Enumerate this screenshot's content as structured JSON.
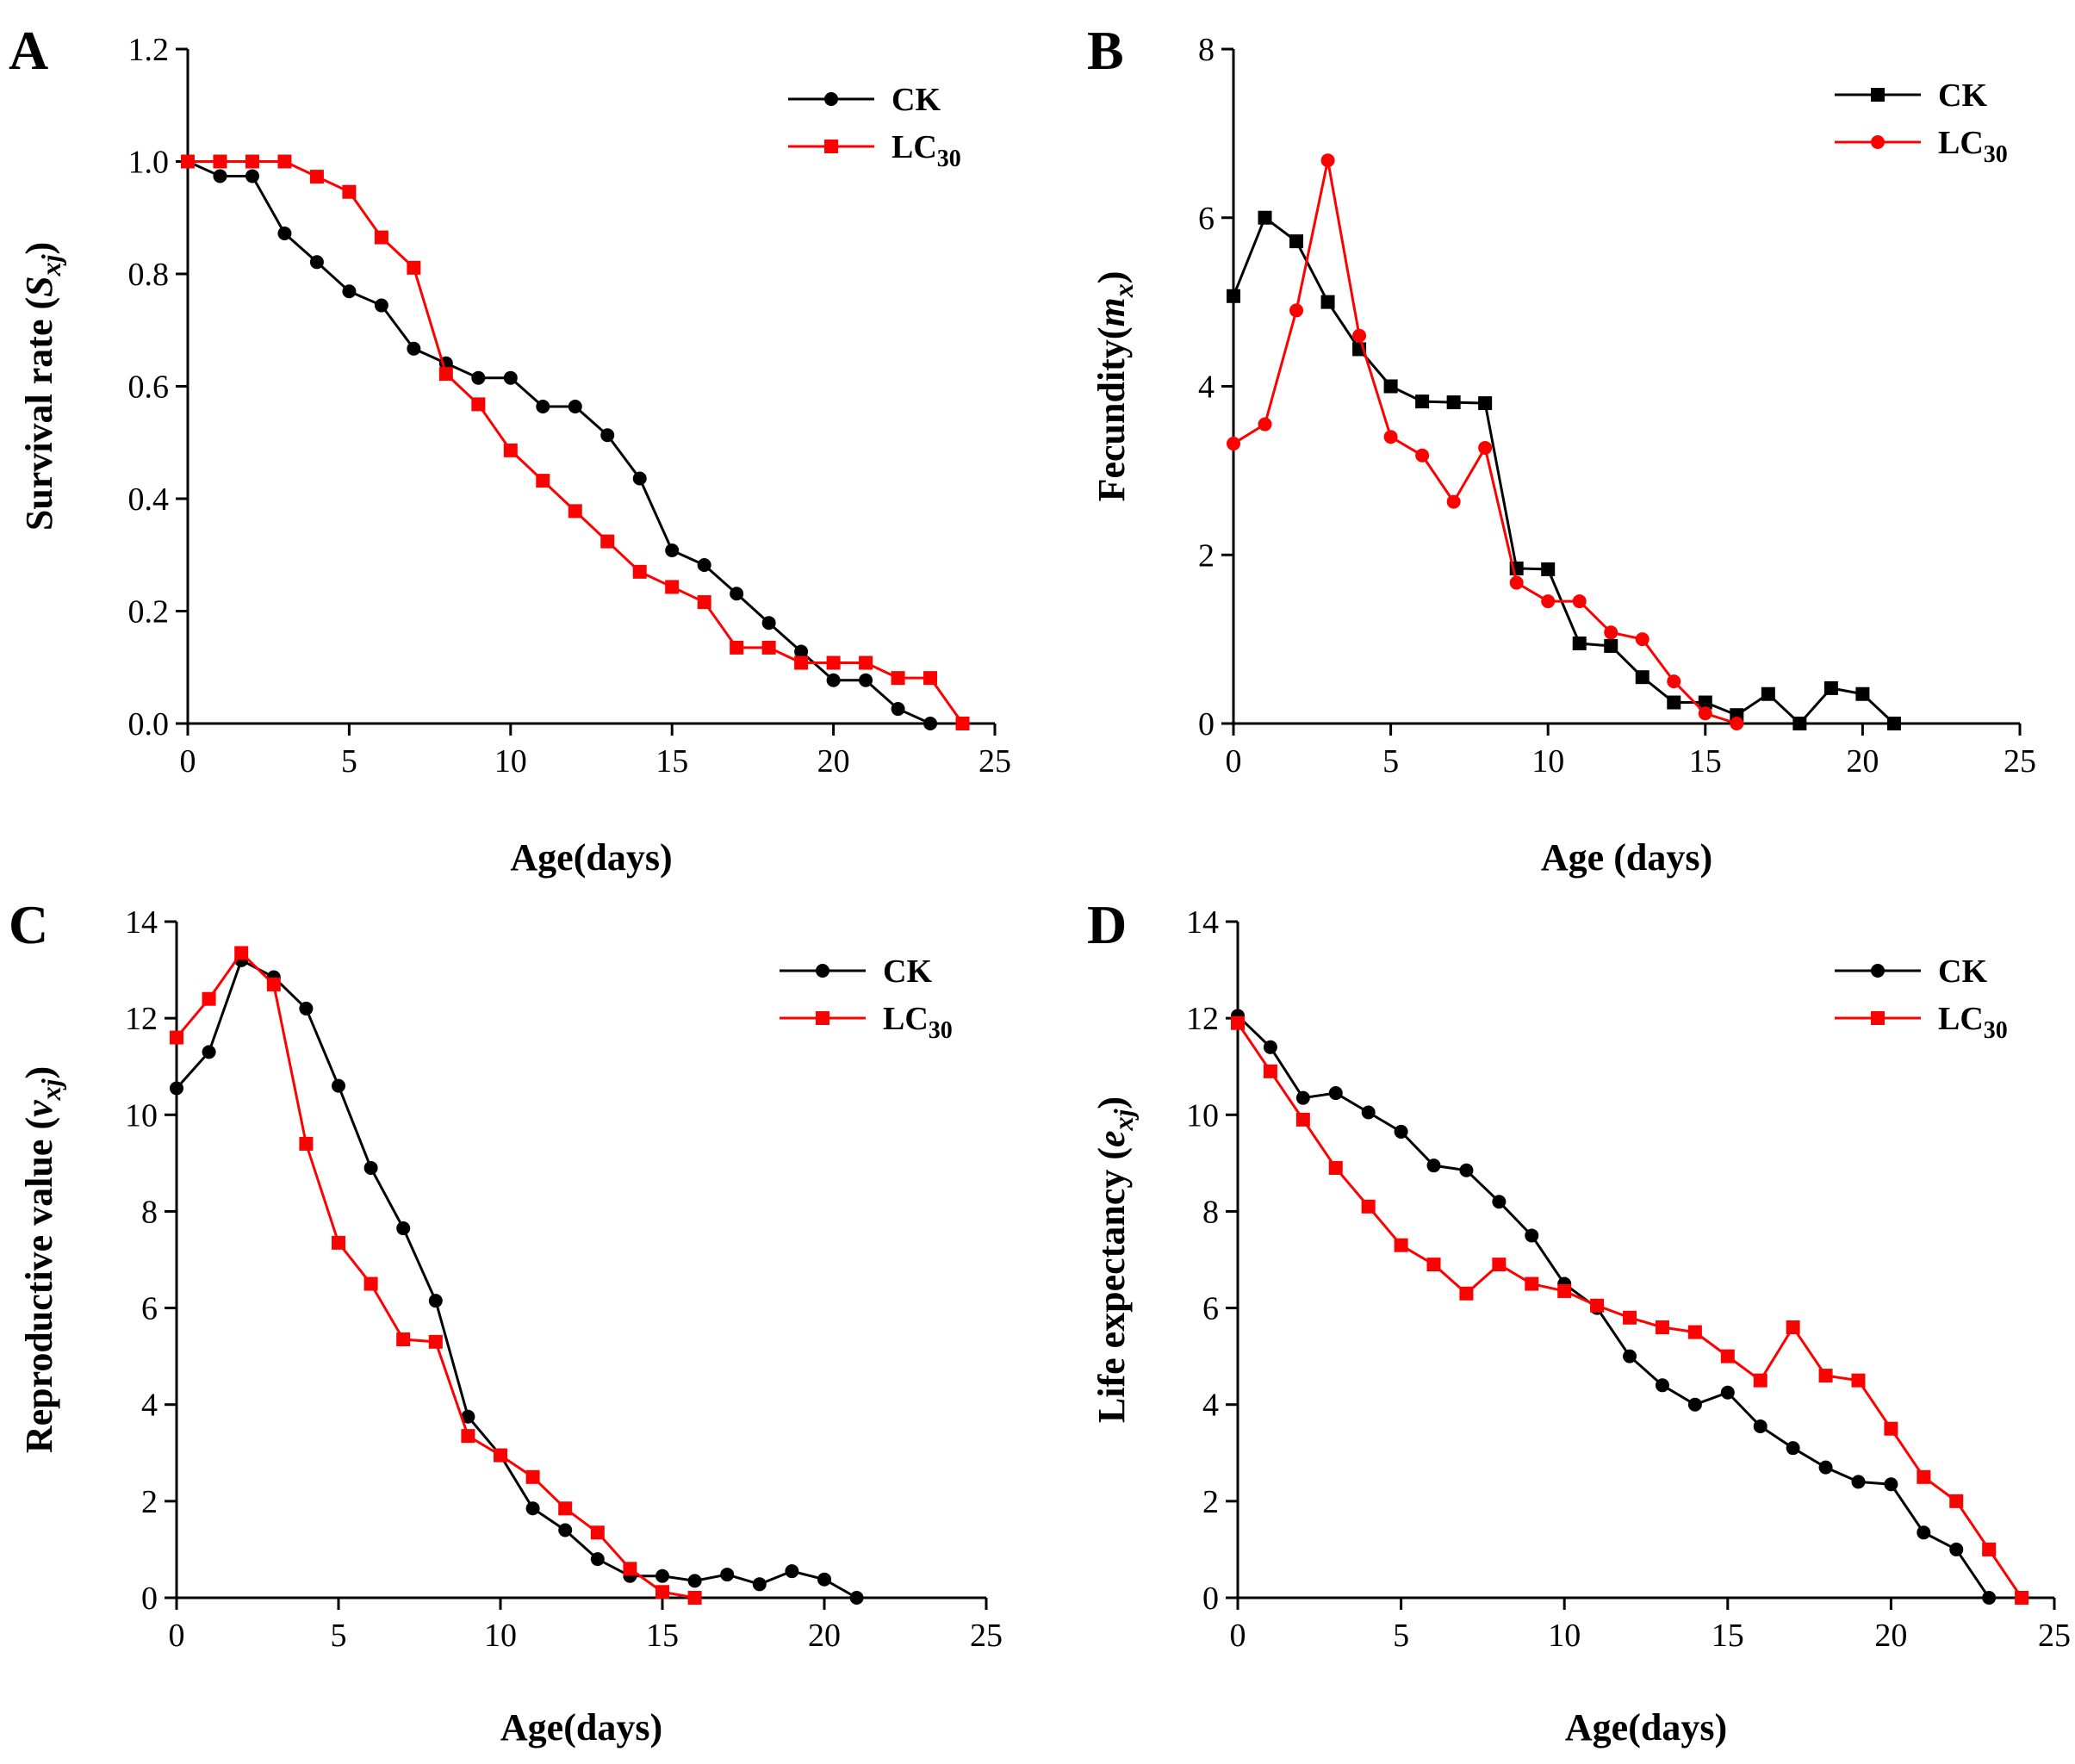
{
  "chart_data": [
    {
      "panel": "A",
      "type": "line",
      "xlabel": "Age(days)",
      "ylabel": {
        "prefix": "Survival rate (",
        "var": "S",
        "sub": "xj",
        "suffix": ")"
      },
      "xlim": [
        0,
        25
      ],
      "ylim": [
        0,
        1.2
      ],
      "xticks": [
        "0",
        "5",
        "10",
        "15",
        "20",
        "25"
      ],
      "yticks": [
        "0.0",
        "0.2",
        "0.4",
        "0.6",
        "0.8",
        "1.0",
        "1.2"
      ],
      "legend_position": "top-right",
      "series": [
        {
          "name": "CK",
          "base": "CK",
          "sub": "",
          "color": "#000000",
          "marker": "circle",
          "x": [
            0,
            1,
            2,
            3,
            4,
            5,
            6,
            7,
            8,
            9,
            10,
            11,
            12,
            13,
            14,
            15,
            16,
            17,
            18,
            19,
            20,
            21,
            22,
            23
          ],
          "y": [
            1.0,
            0.974,
            0.974,
            0.872,
            0.821,
            0.769,
            0.744,
            0.667,
            0.641,
            0.615,
            0.615,
            0.564,
            0.564,
            0.513,
            0.436,
            0.308,
            0.282,
            0.231,
            0.179,
            0.128,
            0.077,
            0.077,
            0.026,
            0.0
          ]
        },
        {
          "name": "LC30",
          "base": "LC",
          "sub": "30",
          "color": "#ff0000",
          "marker": "square",
          "x": [
            0,
            1,
            2,
            3,
            4,
            5,
            6,
            7,
            8,
            9,
            10,
            11,
            12,
            13,
            14,
            15,
            16,
            17,
            18,
            19,
            20,
            21,
            22,
            23,
            24
          ],
          "y": [
            1.0,
            1.0,
            1.0,
            1.0,
            0.973,
            0.946,
            0.865,
            0.811,
            0.622,
            0.568,
            0.486,
            0.432,
            0.378,
            0.324,
            0.27,
            0.243,
            0.216,
            0.135,
            0.135,
            0.108,
            0.108,
            0.108,
            0.081,
            0.081,
            0.0
          ]
        }
      ]
    },
    {
      "panel": "B",
      "type": "line",
      "xlabel": "Age (days)",
      "ylabel": {
        "prefix": "Fecundity(",
        "var": "m",
        "sub": "x",
        "suffix": ")"
      },
      "xlim": [
        0,
        25
      ],
      "ylim": [
        0,
        8
      ],
      "xticks": [
        "0",
        "5",
        "10",
        "15",
        "20",
        "25"
      ],
      "yticks": [
        "0",
        "2",
        "4",
        "6",
        "8"
      ],
      "legend_position": "top-right",
      "series": [
        {
          "name": "CK",
          "base": "CK",
          "sub": "",
          "color": "#000000",
          "marker": "square",
          "x": [
            0,
            1,
            2,
            3,
            4,
            5,
            6,
            7,
            8,
            9,
            10,
            11,
            12,
            13,
            14,
            15,
            16,
            17,
            18,
            19,
            20,
            21
          ],
          "y": [
            5.07,
            6.0,
            5.72,
            5.0,
            4.44,
            4.0,
            3.82,
            3.81,
            3.8,
            1.84,
            1.83,
            0.95,
            0.92,
            0.55,
            0.25,
            0.25,
            0.1,
            0.35,
            0.0,
            0.42,
            0.35,
            0.0
          ]
        },
        {
          "name": "LC30",
          "base": "LC",
          "sub": "30",
          "color": "#ff0000",
          "marker": "circle",
          "x": [
            0,
            1,
            2,
            3,
            4,
            5,
            6,
            7,
            8,
            9,
            10,
            11,
            12,
            13,
            14,
            15,
            16
          ],
          "y": [
            3.32,
            3.55,
            4.9,
            6.68,
            4.6,
            3.4,
            3.18,
            2.63,
            3.27,
            1.67,
            1.45,
            1.45,
            1.08,
            1.0,
            0.5,
            0.12,
            0.0
          ]
        }
      ]
    },
    {
      "panel": "C",
      "type": "line",
      "xlabel": "Age(days)",
      "ylabel": {
        "prefix": "Reproductive value (",
        "var": "v",
        "sub": "xj",
        "suffix": ")"
      },
      "xlim": [
        0,
        25
      ],
      "ylim": [
        0,
        14
      ],
      "xticks": [
        "0",
        "5",
        "10",
        "15",
        "20",
        "25"
      ],
      "yticks": [
        "0",
        "2",
        "4",
        "6",
        "8",
        "10",
        "12",
        "14"
      ],
      "legend_position": "top-right",
      "series": [
        {
          "name": "CK",
          "base": "CK",
          "sub": "",
          "color": "#000000",
          "marker": "circle",
          "x": [
            0,
            1,
            2,
            3,
            4,
            5,
            6,
            7,
            8,
            9,
            10,
            11,
            12,
            13,
            14,
            15,
            16,
            17,
            18,
            19,
            20,
            21
          ],
          "y": [
            10.55,
            11.3,
            13.2,
            12.85,
            12.2,
            10.6,
            8.9,
            7.65,
            6.15,
            3.75,
            2.95,
            1.85,
            1.4,
            0.8,
            0.45,
            0.45,
            0.35,
            0.48,
            0.28,
            0.55,
            0.38,
            0.0
          ]
        },
        {
          "name": "LC30",
          "base": "LC",
          "sub": "30",
          "color": "#ff0000",
          "marker": "square",
          "x": [
            0,
            1,
            2,
            3,
            4,
            5,
            6,
            7,
            8,
            9,
            10,
            11,
            12,
            13,
            14,
            15,
            16
          ],
          "y": [
            11.6,
            12.4,
            13.35,
            12.7,
            9.4,
            7.35,
            6.5,
            5.35,
            5.3,
            3.35,
            2.95,
            2.5,
            1.85,
            1.35,
            0.6,
            0.12,
            0.0
          ]
        }
      ]
    },
    {
      "panel": "D",
      "type": "line",
      "xlabel": "Age(days)",
      "ylabel": {
        "prefix": "Life expectancy (",
        "var": "e",
        "sub": "xj",
        "suffix": ")"
      },
      "xlim": [
        0,
        25
      ],
      "ylim": [
        0,
        14
      ],
      "xticks": [
        "0",
        "5",
        "10",
        "15",
        "20",
        "25"
      ],
      "yticks": [
        "0",
        "2",
        "4",
        "6",
        "8",
        "10",
        "12",
        "14"
      ],
      "legend_position": "top-right",
      "series": [
        {
          "name": "CK",
          "base": "CK",
          "sub": "",
          "color": "#000000",
          "marker": "circle",
          "x": [
            0,
            1,
            2,
            3,
            4,
            5,
            6,
            7,
            8,
            9,
            10,
            11,
            12,
            13,
            14,
            15,
            16,
            17,
            18,
            19,
            20,
            21,
            22,
            23
          ],
          "y": [
            12.05,
            11.4,
            10.35,
            10.45,
            10.05,
            9.65,
            8.95,
            8.85,
            8.2,
            7.5,
            6.5,
            6.0,
            5.0,
            4.4,
            4.0,
            4.25,
            3.55,
            3.1,
            2.7,
            2.4,
            2.35,
            1.35,
            1.0,
            0.0
          ]
        },
        {
          "name": "LC30",
          "base": "LC",
          "sub": "30",
          "color": "#ff0000",
          "marker": "square",
          "x": [
            0,
            1,
            2,
            3,
            4,
            5,
            6,
            7,
            8,
            9,
            10,
            11,
            12,
            13,
            14,
            15,
            16,
            17,
            18,
            19,
            20,
            21,
            22,
            23,
            24
          ],
          "y": [
            11.9,
            10.9,
            9.9,
            8.9,
            8.1,
            7.3,
            6.9,
            6.3,
            6.9,
            6.5,
            6.35,
            6.05,
            5.8,
            5.6,
            5.5,
            5.0,
            4.5,
            5.6,
            4.6,
            4.5,
            3.5,
            2.5,
            2.0,
            1.0,
            0.0
          ]
        }
      ]
    }
  ]
}
